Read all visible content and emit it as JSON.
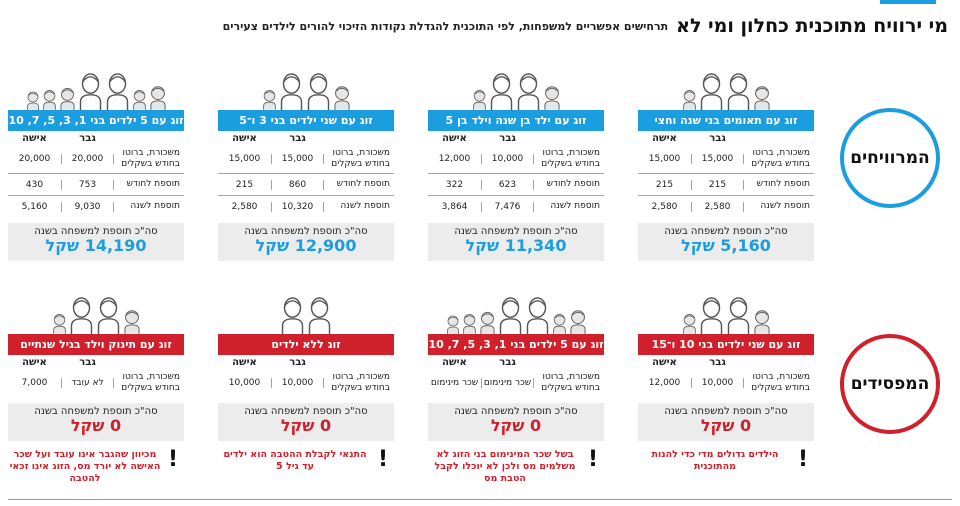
{
  "header": {
    "title": "מי ירוויח מתוכנית כחלון ומי לא",
    "subtitle": "תרחישים אפשריים למשפחות, לפי התוכנית להגדלת נקודות הזיכוי להורים לילדים צעירים"
  },
  "winners_label": "המרוויחים",
  "losers_label": "המפסידים",
  "labels": {
    "woman": "אישה",
    "man": "גבר",
    "salary": "משכורת, ברוטו בחודש בשקלים",
    "monthly": "תוספת לחודש",
    "yearly": "תוספת לשנה",
    "total": "סה\"כ תוספת למשפחה בשנה"
  },
  "colors": {
    "blue": "#1a9ee0",
    "red": "#d0202c"
  },
  "winners": [
    {
      "title": "זוג עם תאומים בני שנה וחצי",
      "man_salary": "15,000",
      "woman_salary": "15,000",
      "man_month": "215",
      "woman_month": "215",
      "man_year": "2,580",
      "woman_year": "2,580",
      "total": "5,160 שקל"
    },
    {
      "title": "זוג עם ילד בן שנה וילד בן 5",
      "man_salary": "10,000",
      "woman_salary": "12,000",
      "man_month": "623",
      "woman_month": "322",
      "man_year": "7,476",
      "woman_year": "3,864",
      "total": "11,340 שקל"
    },
    {
      "title": "זוג עם שני ילדים בני 3 ו־5",
      "man_salary": "15,000",
      "woman_salary": "15,000",
      "man_month": "860",
      "woman_month": "215",
      "man_year": "10,320",
      "woman_year": "2,580",
      "total": "12,900 שקל"
    },
    {
      "title": "זוג עם 5 ילדים בני 1, 3, 5, 7, 10",
      "man_salary": "20,000",
      "woman_salary": "20,000",
      "man_month": "753",
      "woman_month": "430",
      "man_year": "9,030",
      "woman_year": "5,160",
      "total": "14,190 שקל"
    }
  ],
  "losers": [
    {
      "title": "זוג עם שני ילדים בני 10 ו־15",
      "man_salary": "10,000",
      "woman_salary": "12,000",
      "total": "0 שקל",
      "note": "הילדים גדולים מדי כדי להנות מהתוכנית"
    },
    {
      "title": "זוג עם 5 ילדים בני 1, 3, 5, 7, 10",
      "man_salary": "שכר מינימום",
      "woman_salary": "שכר מינימום",
      "total": "0 שקל",
      "note": "בשל שכר המינימום בני הזוג לא משלמים מס ולכן לא יוכלו לקבל הטבת מס"
    },
    {
      "title": "זוג ללא ילדים",
      "man_salary": "10,000",
      "woman_salary": "10,000",
      "total": "0 שקל",
      "note": "התנאי לקבלת ההטבה הוא ילדים עד גיל 5"
    },
    {
      "title": "זוג עם תינוק וילד בגיל שנתיים",
      "man_salary": "לא עובד",
      "woman_salary": "7,000",
      "total": "0 שקל",
      "note": "מכיוון שהגבר אינו עובד ועל שכר האישה לא יורד מס, הזוג אינו זכאי להטבה"
    }
  ]
}
